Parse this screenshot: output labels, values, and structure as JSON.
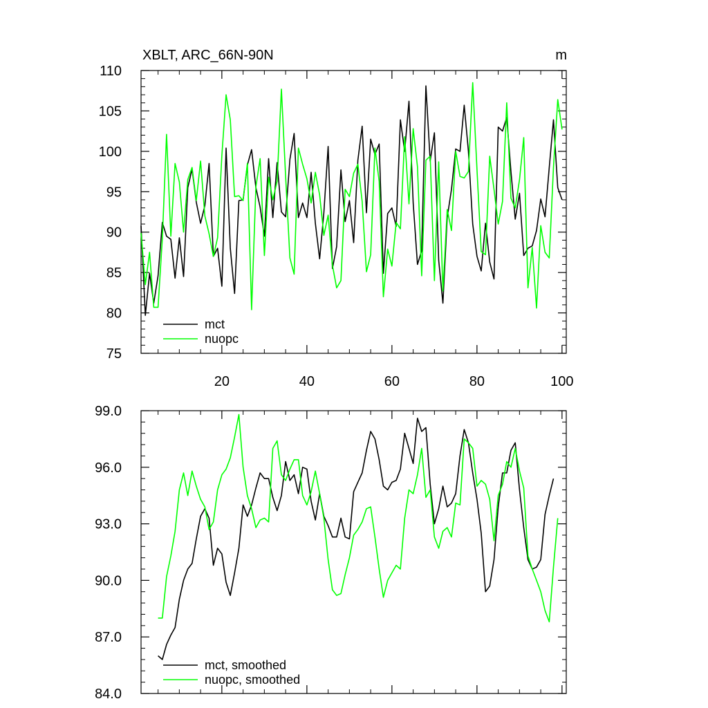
{
  "colors": {
    "mct": "#000000",
    "nuopc": "#00ff00",
    "axis": "#000000"
  },
  "chart_data": [
    {
      "type": "line",
      "title": "XBLT, ARC_66N-90N",
      "units": "m",
      "xlim": [
        1,
        101
      ],
      "ylim": [
        75,
        110
      ],
      "xticks": [
        20,
        40,
        60,
        80,
        100
      ],
      "xtick_labels": [
        "20",
        "40",
        "60",
        "80",
        "100"
      ],
      "yticks": [
        75,
        80,
        85,
        90,
        95,
        100,
        105,
        110
      ],
      "ytick_labels": [
        "75",
        "80",
        "85",
        "90",
        "95",
        "100",
        "105",
        "110"
      ],
      "legend_position": "bottom-left",
      "series": [
        {
          "name": "mct",
          "x_start": 1,
          "values": [
            90.8,
            79.7,
            84.9,
            81.2,
            84.6,
            91.2,
            89.5,
            89.1,
            84.3,
            89.3,
            84.5,
            95.5,
            97.8,
            93.7,
            91.1,
            93.3,
            98.5,
            87.0,
            88.0,
            83.3,
            100.4,
            88.0,
            82.4,
            93.9,
            94.0,
            98.3,
            100.2,
            95.5,
            93.1,
            89.5,
            99.1,
            91.8,
            98.6,
            92.5,
            91.9,
            99.0,
            102.2,
            91.8,
            93.6,
            91.8,
            97.4,
            91.1,
            86.7,
            92.4,
            100.6,
            85.5,
            88.2,
            97.7,
            91.3,
            93.9,
            88.7,
            98.9,
            103.1,
            92.4,
            101.5,
            99.6,
            100.9,
            84.9,
            92.3,
            93.0,
            90.7,
            103.9,
            100.0,
            106.2,
            93.6,
            86.0,
            87.7,
            108.1,
            98.8,
            102.3,
            86.5,
            81.2,
            91.8,
            95.3,
            100.3,
            100.0,
            105.7,
            100.0,
            91.0,
            87.0,
            85.2,
            91.1,
            86.3,
            84.2,
            103.0,
            102.5,
            104.2,
            97.5,
            91.6,
            94.8,
            87.1,
            88.0,
            88.3,
            90.2,
            94.1,
            91.9,
            98.0,
            103.9,
            95.5,
            94.0
          ]
        },
        {
          "name": "nuopc",
          "x_start": 1,
          "values": [
            89.9,
            83.5,
            87.5,
            80.7,
            80.7,
            89.2,
            102.1,
            89.5,
            98.5,
            96.2,
            90.0,
            96.5,
            98.0,
            93.9,
            98.8,
            92.0,
            89.8,
            87.0,
            89.3,
            99.5,
            107.0,
            103.9,
            94.4,
            94.5,
            93.9,
            98.5,
            80.4,
            95.6,
            99.1,
            87.1,
            96.8,
            94.0,
            96.3,
            107.7,
            96.9,
            86.8,
            84.8,
            100.4,
            98.4,
            96.6,
            93.6,
            97.4,
            94.6,
            89.6,
            92.1,
            85.9,
            83.1,
            84.0,
            95.3,
            94.4,
            97.3,
            98.4,
            93.8,
            85.1,
            87.2,
            100.4,
            96.3,
            82.0,
            87.9,
            85.8,
            91.2,
            90.4,
            101.8,
            93.5,
            102.8,
            98.1,
            84.6,
            98.9,
            99.4,
            84.0,
            98.7,
            82.7,
            92.8,
            90.2,
            100.0,
            96.9,
            96.7,
            97.5,
            108.5,
            97.7,
            87.6,
            87.2,
            99.4,
            95.3,
            91.0,
            93.8,
            106.0,
            94.2,
            93.0,
            96.5,
            101.7,
            83.1,
            88.1,
            80.6,
            90.8,
            87.5,
            86.8,
            98.0,
            106.4,
            102.7
          ]
        }
      ]
    },
    {
      "type": "line",
      "xlim": [
        1,
        101
      ],
      "ylim": [
        84.0,
        99.0
      ],
      "xticks": [
        20,
        40,
        60,
        80,
        100
      ],
      "yticks": [
        84.0,
        87.0,
        90.0,
        93.0,
        96.0,
        99.0
      ],
      "ytick_labels": [
        "84.0",
        "87.0",
        "90.0",
        "93.0",
        "96.0",
        "99.0"
      ],
      "legend_position": "bottom-left",
      "series": [
        {
          "name": "mct, smoothed",
          "x_start": 5,
          "values": [
            86.0,
            85.8,
            86.6,
            87.1,
            87.5,
            89.0,
            90.0,
            90.6,
            90.9,
            92.2,
            93.4,
            93.8,
            93.3,
            90.8,
            91.7,
            91.4,
            89.9,
            89.2,
            90.4,
            91.7,
            94.0,
            93.4,
            94.0,
            94.9,
            95.7,
            95.4,
            95.4,
            94.4,
            93.7,
            94.5,
            96.3,
            95.3,
            95.6,
            94.6,
            96.0,
            95.9,
            94.2,
            93.2,
            94.6,
            93.4,
            92.9,
            92.3,
            92.3,
            93.3,
            92.3,
            92.2,
            94.7,
            95.2,
            95.7,
            96.9,
            97.9,
            97.5,
            96.4,
            95.0,
            94.8,
            95.2,
            95.3,
            95.9,
            97.8,
            97.0,
            96.2,
            98.6,
            97.9,
            98.1,
            95.1,
            93.0,
            93.8,
            95.0,
            93.9,
            94.1,
            94.6,
            96.6,
            98.0,
            97.3,
            95.7,
            94.3,
            92.5,
            89.4,
            89.7,
            91.1,
            93.9,
            95.7,
            95.7,
            96.9,
            97.3,
            94.8,
            92.8,
            91.1,
            90.6,
            90.7,
            91.1,
            93.5,
            94.5,
            95.4
          ]
        },
        {
          "name": "nuopc, smoothed",
          "x_start": 5,
          "values": [
            88.0,
            88.0,
            90.2,
            91.3,
            92.6,
            94.8,
            95.7,
            94.5,
            95.8,
            95.0,
            94.3,
            93.9,
            92.7,
            93.1,
            94.8,
            95.6,
            95.9,
            96.5,
            97.6,
            98.8,
            96.0,
            94.5,
            93.8,
            92.8,
            93.2,
            93.3,
            93.1,
            97.0,
            97.4,
            95.6,
            95.3,
            95.9,
            96.4,
            96.4,
            94.5,
            94.0,
            94.7,
            95.8,
            94.6,
            93.3,
            91.1,
            89.5,
            89.2,
            89.3,
            90.3,
            91.2,
            92.4,
            92.7,
            93.1,
            93.8,
            93.9,
            92.3,
            90.6,
            89.1,
            90.0,
            90.4,
            90.8,
            90.6,
            93.3,
            94.8,
            94.6,
            95.6,
            97.0,
            94.4,
            94.8,
            92.3,
            91.7,
            92.6,
            92.8,
            92.3,
            94.1,
            94.0,
            97.5,
            97.3,
            97.0,
            95.0,
            95.3,
            95.1,
            94.3,
            92.1,
            94.5,
            95.1,
            96.3,
            96.0,
            97.0,
            95.8,
            94.9,
            91.3,
            90.6,
            90.0,
            89.4,
            88.4,
            87.8,
            90.7,
            93.3
          ]
        }
      ]
    }
  ]
}
